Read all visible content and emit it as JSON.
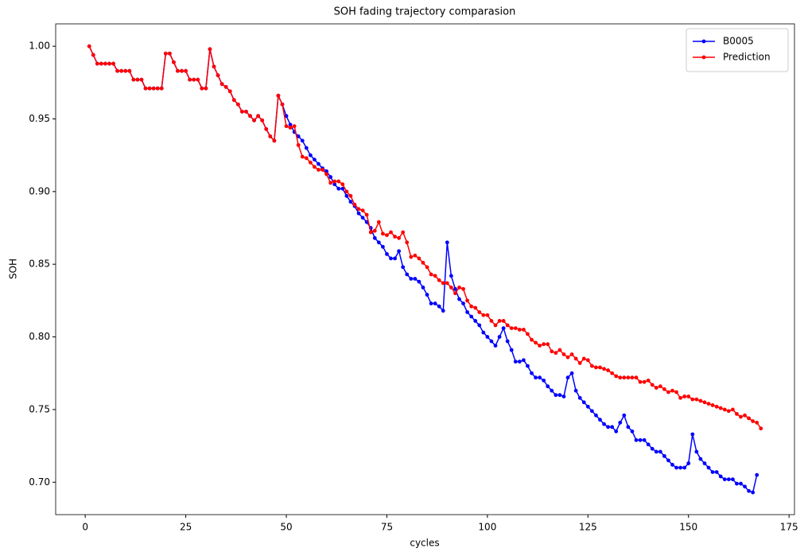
{
  "chart_data": {
    "type": "line",
    "title": "SOH fading trajectory comparasion",
    "x_label": "cycles",
    "y_label": "SOH",
    "x": [
      1,
      2,
      3,
      4,
      5,
      6,
      7,
      8,
      9,
      10,
      11,
      12,
      13,
      14,
      15,
      16,
      17,
      18,
      19,
      20,
      21,
      22,
      23,
      24,
      25,
      26,
      27,
      28,
      29,
      30,
      31,
      32,
      33,
      34,
      35,
      36,
      37,
      38,
      39,
      40,
      41,
      42,
      43,
      44,
      45,
      46,
      47,
      48,
      49,
      50,
      51,
      52,
      53,
      54,
      55,
      56,
      57,
      58,
      59,
      60,
      61,
      62,
      63,
      64,
      65,
      66,
      67,
      68,
      69,
      70,
      71,
      72,
      73,
      74,
      75,
      76,
      77,
      78,
      79,
      80,
      81,
      82,
      83,
      84,
      85,
      86,
      87,
      88,
      89,
      90,
      91,
      92,
      93,
      94,
      95,
      96,
      97,
      98,
      99,
      100,
      101,
      102,
      103,
      104,
      105,
      106,
      107,
      108,
      109,
      110,
      111,
      112,
      113,
      114,
      115,
      116,
      117,
      118,
      119,
      120,
      121,
      122,
      123,
      124,
      125,
      126,
      127,
      128,
      129,
      130,
      131,
      132,
      133,
      134,
      135,
      136,
      137,
      138,
      139,
      140,
      141,
      142,
      143,
      144,
      145,
      146,
      147,
      148,
      149,
      150,
      151,
      152,
      153,
      154,
      155,
      156,
      157,
      158,
      159,
      160,
      161,
      162,
      163,
      164,
      165,
      166,
      167,
      168
    ],
    "series": [
      {
        "name": "B0005",
        "color": "#0000ff",
        "values": [
          1.0,
          0.994,
          0.988,
          0.988,
          0.988,
          0.988,
          0.988,
          0.983,
          0.983,
          0.983,
          0.983,
          0.977,
          0.977,
          0.977,
          0.971,
          0.971,
          0.971,
          0.971,
          0.971,
          0.995,
          0.995,
          0.989,
          0.983,
          0.983,
          0.983,
          0.977,
          0.977,
          0.977,
          0.971,
          0.971,
          0.998,
          0.986,
          0.98,
          0.974,
          0.972,
          0.969,
          0.963,
          0.96,
          0.955,
          0.955,
          0.952,
          0.949,
          0.952,
          0.949,
          0.943,
          0.938,
          0.935,
          0.966,
          0.96,
          0.952,
          0.946,
          0.941,
          0.938,
          0.935,
          0.93,
          0.925,
          0.922,
          0.919,
          0.916,
          0.914,
          0.91,
          0.905,
          0.902,
          0.902,
          0.897,
          0.893,
          0.89,
          0.885,
          0.882,
          0.879,
          0.875,
          0.868,
          0.865,
          0.862,
          0.857,
          0.854,
          0.854,
          0.859,
          0.848,
          0.843,
          0.84,
          0.84,
          0.838,
          0.834,
          0.829,
          0.823,
          0.823,
          0.821,
          0.818,
          0.865,
          0.842,
          0.833,
          0.826,
          0.823,
          0.817,
          0.814,
          0.811,
          0.808,
          0.803,
          0.8,
          0.797,
          0.794,
          0.8,
          0.806,
          0.797,
          0.791,
          0.783,
          0.783,
          0.784,
          0.78,
          0.775,
          0.772,
          0.772,
          0.77,
          0.766,
          0.763,
          0.76,
          0.76,
          0.759,
          0.772,
          0.775,
          0.763,
          0.758,
          0.755,
          0.752,
          0.749,
          0.746,
          0.743,
          0.74,
          0.738,
          0.738,
          0.735,
          0.741,
          0.746,
          0.738,
          0.735,
          0.729,
          0.729,
          0.729,
          0.726,
          0.723,
          0.721,
          0.721,
          0.718,
          0.715,
          0.712,
          0.71,
          0.71,
          0.71,
          0.713,
          0.733,
          0.721,
          0.716,
          0.713,
          0.71,
          0.707,
          0.707,
          0.704,
          0.702,
          0.702,
          0.702,
          0.699,
          0.699,
          0.697,
          0.694,
          0.693,
          0.705,
          null
        ]
      },
      {
        "name": "Prediction",
        "color": "#ff0000",
        "values": [
          1.0,
          0.994,
          0.988,
          0.988,
          0.988,
          0.988,
          0.988,
          0.983,
          0.983,
          0.983,
          0.983,
          0.977,
          0.977,
          0.977,
          0.971,
          0.971,
          0.971,
          0.971,
          0.971,
          0.995,
          0.995,
          0.989,
          0.983,
          0.983,
          0.983,
          0.977,
          0.977,
          0.977,
          0.971,
          0.971,
          0.998,
          0.986,
          0.98,
          0.974,
          0.972,
          0.969,
          0.963,
          0.96,
          0.955,
          0.955,
          0.952,
          0.949,
          0.952,
          0.949,
          0.943,
          0.938,
          0.935,
          0.966,
          0.96,
          0.945,
          0.944,
          0.945,
          0.932,
          0.924,
          0.923,
          0.92,
          0.917,
          0.915,
          0.915,
          0.912,
          0.906,
          0.907,
          0.907,
          0.905,
          0.9,
          0.897,
          0.891,
          0.888,
          0.887,
          0.884,
          0.872,
          0.873,
          0.879,
          0.871,
          0.87,
          0.872,
          0.869,
          0.868,
          0.872,
          0.865,
          0.855,
          0.856,
          0.854,
          0.851,
          0.848,
          0.843,
          0.842,
          0.839,
          0.837,
          0.837,
          0.834,
          0.83,
          0.834,
          0.833,
          0.825,
          0.821,
          0.82,
          0.817,
          0.815,
          0.815,
          0.811,
          0.808,
          0.811,
          0.811,
          0.808,
          0.806,
          0.806,
          0.805,
          0.805,
          0.802,
          0.798,
          0.796,
          0.794,
          0.795,
          0.795,
          0.79,
          0.789,
          0.791,
          0.788,
          0.786,
          0.788,
          0.785,
          0.782,
          0.785,
          0.784,
          0.78,
          0.779,
          0.779,
          0.778,
          0.777,
          0.775,
          0.773,
          0.772,
          0.772,
          0.772,
          0.772,
          0.772,
          0.769,
          0.769,
          0.77,
          0.767,
          0.765,
          0.766,
          0.764,
          0.762,
          0.763,
          0.762,
          0.758,
          0.759,
          0.759,
          0.757,
          0.757,
          0.756,
          0.755,
          0.754,
          0.753,
          0.752,
          0.751,
          0.75,
          0.749,
          0.75,
          0.747,
          0.745,
          0.746,
          0.744,
          0.742,
          0.741,
          0.737
        ]
      }
    ],
    "xlim": [
      -7.35,
      176.35
    ],
    "xticks": [
      0,
      25,
      50,
      75,
      100,
      125,
      150,
      175
    ],
    "ylim": [
      0.6777,
      1.0154
    ],
    "yticks": [
      {
        "value": 0.7,
        "label": "0.70"
      },
      0.75,
      {
        "value": 0.8,
        "label": "0.80"
      },
      0.85,
      {
        "value": 0.9,
        "label": "0.90"
      },
      0.95,
      {
        "value": 1.0,
        "label": "1.00"
      }
    ],
    "grid": false,
    "legend": "upper right",
    "markers": true
  }
}
